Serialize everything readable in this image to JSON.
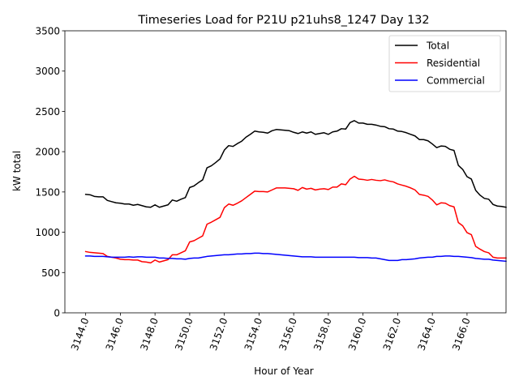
{
  "chart_data": {
    "type": "line",
    "title": "Timeseries Load for P21U p21uhs8_1247  Day 132",
    "xlabel": "Hour of Year",
    "ylabel": "kW total",
    "xlim": [
      3142.8,
      3168.25
    ],
    "ylim": [
      0,
      3500
    ],
    "x_ticks": [
      3144,
      3146,
      3148,
      3150,
      3152,
      3154,
      3156,
      3158,
      3160,
      3162,
      3164,
      3166
    ],
    "x_tick_labels": [
      "3144.0",
      "3146.0",
      "3148.0",
      "3150.0",
      "3152.0",
      "3154.0",
      "3156.0",
      "3158.0",
      "3160.0",
      "3162.0",
      "3164.0",
      "3166.0"
    ],
    "y_ticks": [
      0,
      500,
      1000,
      1500,
      2000,
      2500,
      3000,
      3500
    ],
    "y_tick_labels": [
      "0",
      "500",
      "1000",
      "1500",
      "2000",
      "2500",
      "3000",
      "3500"
    ],
    "legend_position": "top-right",
    "x_start": 3144,
    "x_step": 0.25,
    "series": [
      {
        "name": "Total",
        "color": "#000000",
        "values": [
          1470,
          1465,
          1445,
          1440,
          1440,
          1395,
          1380,
          1365,
          1360,
          1350,
          1350,
          1335,
          1345,
          1330,
          1315,
          1310,
          1340,
          1310,
          1325,
          1340,
          1400,
          1385,
          1410,
          1430,
          1555,
          1575,
          1615,
          1650,
          1800,
          1825,
          1865,
          1910,
          2020,
          2075,
          2065,
          2100,
          2130,
          2180,
          2215,
          2255,
          2245,
          2240,
          2230,
          2260,
          2275,
          2270,
          2265,
          2260,
          2240,
          2225,
          2245,
          2230,
          2245,
          2215,
          2225,
          2235,
          2215,
          2245,
          2255,
          2285,
          2280,
          2360,
          2385,
          2355,
          2355,
          2340,
          2340,
          2330,
          2315,
          2310,
          2285,
          2280,
          2255,
          2250,
          2235,
          2215,
          2195,
          2150,
          2150,
          2135,
          2095,
          2050,
          2070,
          2065,
          2030,
          2015,
          1830,
          1780,
          1690,
          1660,
          1520,
          1460,
          1420,
          1410,
          1345,
          1325,
          1320,
          1310
        ]
      },
      {
        "name": "Residential",
        "color": "#ff0000",
        "values": [
          760,
          750,
          745,
          740,
          735,
          700,
          690,
          680,
          665,
          660,
          660,
          655,
          655,
          635,
          630,
          620,
          655,
          630,
          645,
          660,
          720,
          720,
          745,
          770,
          880,
          895,
          925,
          955,
          1100,
          1125,
          1155,
          1185,
          1305,
          1350,
          1335,
          1360,
          1390,
          1430,
          1470,
          1510,
          1505,
          1505,
          1500,
          1525,
          1550,
          1550,
          1550,
          1545,
          1540,
          1520,
          1555,
          1535,
          1545,
          1525,
          1535,
          1540,
          1530,
          1560,
          1560,
          1600,
          1590,
          1660,
          1695,
          1660,
          1655,
          1645,
          1655,
          1645,
          1640,
          1650,
          1635,
          1625,
          1600,
          1585,
          1570,
          1550,
          1525,
          1470,
          1460,
          1445,
          1400,
          1340,
          1365,
          1360,
          1330,
          1315,
          1120,
          1080,
          995,
          970,
          825,
          790,
          760,
          745,
          690,
          680,
          680,
          680
        ]
      },
      {
        "name": "Commercial",
        "color": "#0000ff",
        "values": [
          705,
          705,
          700,
          700,
          700,
          695,
          690,
          690,
          690,
          690,
          695,
          690,
          695,
          695,
          690,
          690,
          690,
          680,
          680,
          675,
          675,
          670,
          670,
          665,
          675,
          680,
          680,
          690,
          700,
          705,
          710,
          715,
          720,
          720,
          725,
          730,
          730,
          735,
          735,
          740,
          740,
          735,
          735,
          730,
          725,
          720,
          715,
          710,
          705,
          700,
          695,
          695,
          695,
          690,
          690,
          690,
          690,
          690,
          690,
          690,
          690,
          690,
          690,
          685,
          685,
          685,
          680,
          680,
          670,
          660,
          650,
          650,
          650,
          660,
          660,
          665,
          670,
          680,
          685,
          690,
          690,
          700,
          700,
          705,
          705,
          700,
          700,
          695,
          690,
          685,
          675,
          670,
          665,
          665,
          655,
          650,
          645,
          640
        ]
      }
    ]
  }
}
